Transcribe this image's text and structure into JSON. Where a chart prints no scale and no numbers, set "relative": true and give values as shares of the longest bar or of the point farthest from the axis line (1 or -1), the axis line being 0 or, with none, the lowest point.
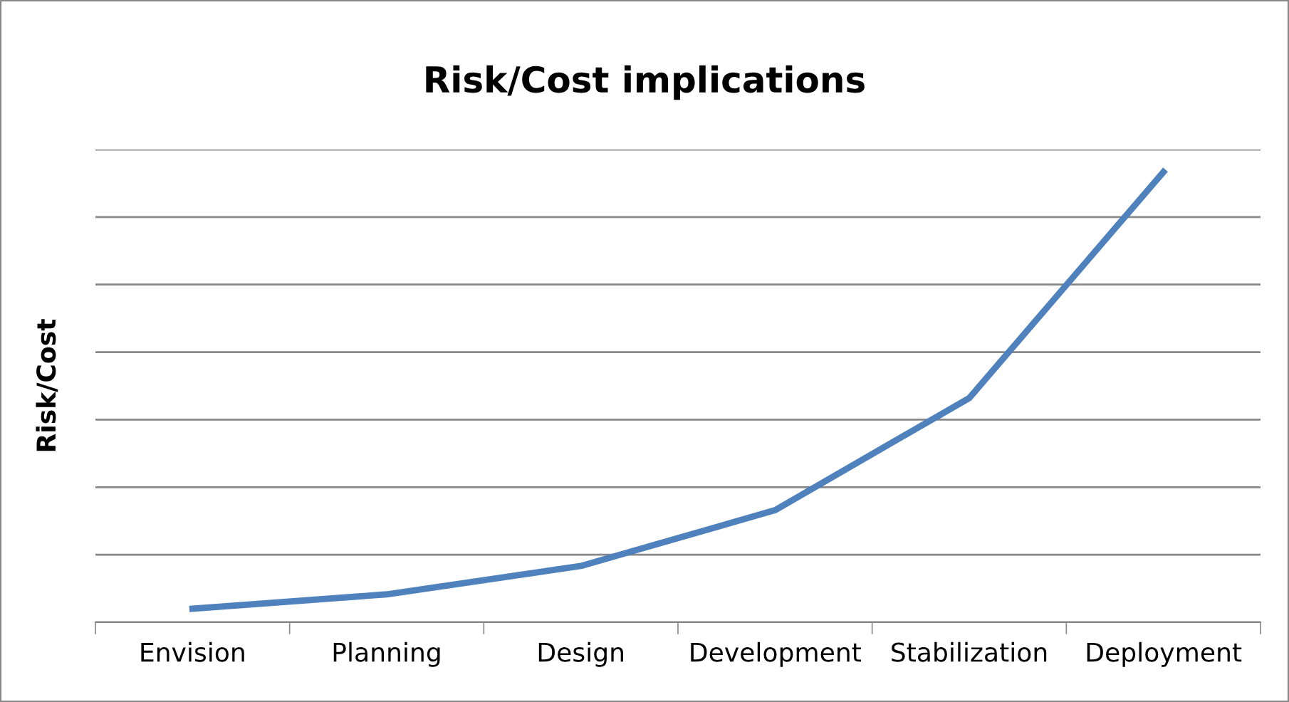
{
  "chart_data": {
    "type": "line",
    "title": "Risk/Cost implications",
    "ylabel": "Risk/Cost",
    "categories": [
      "Envision",
      "Planning",
      "Design",
      "Development",
      "Stabilization",
      "Deployment"
    ],
    "series": [
      {
        "color": "#4f81bd",
        "values": [
          0.03,
          0.062,
          0.125,
          0.249,
          0.498,
          1
        ]
      }
    ],
    "relative": true,
    "grid": "y",
    "marker": "none",
    "line_style": "solid"
  }
}
